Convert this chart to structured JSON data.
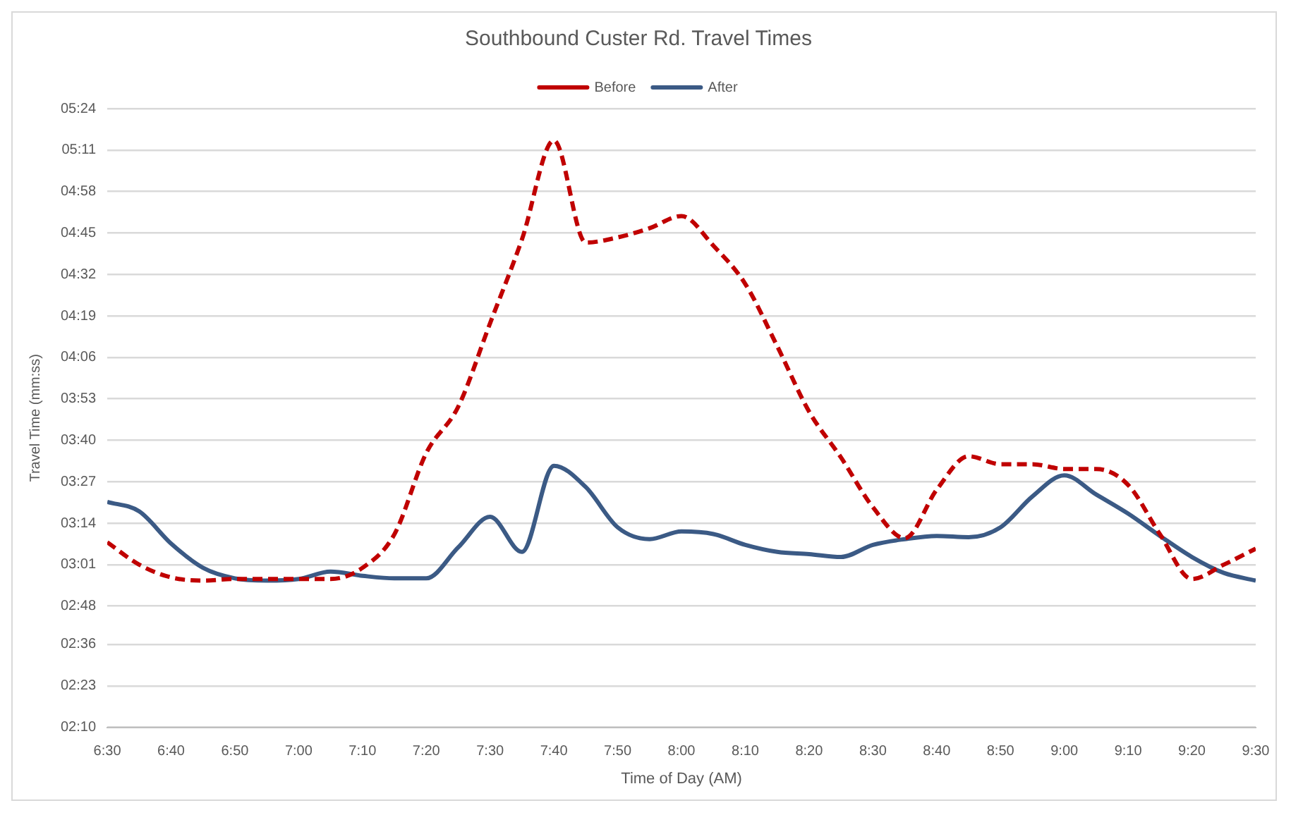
{
  "chart_data": {
    "type": "line",
    "title": "Southbound Custer Rd. Travel Times",
    "xlabel": "Time of Day (AM)",
    "ylabel": "Travel Time (mm:ss)",
    "x": [
      6.5,
      6.5833,
      6.6667,
      6.75,
      6.8333,
      6.9167,
      7,
      7.0833,
      7.1667,
      7.25,
      7.3333,
      7.4167,
      7.5,
      7.5833,
      7.6667,
      7.75,
      7.8333,
      7.9167,
      8,
      8.0833,
      8.1667,
      8.25,
      8.3333,
      8.4167,
      8.5,
      8.5833,
      8.6667,
      8.75,
      8.8333,
      8.9167,
      9,
      9.0833,
      9.1667,
      9.25,
      9.3333,
      9.4167,
      9.5
    ],
    "series": [
      {
        "name": "Before",
        "color": "#c00000",
        "line_style": "dashed",
        "values": [
          188,
          181,
          177,
          176,
          176.5,
          176.5,
          176.5,
          176.5,
          180,
          190.5,
          216,
          230.5,
          256.7,
          283,
          314,
          282,
          283.6,
          286.5,
          290.3,
          281,
          269,
          249.5,
          229,
          214.6,
          199,
          189.3,
          204.5,
          215,
          212.5,
          212.5,
          211,
          211,
          206,
          190.5,
          176.5,
          181,
          186
        ]
      },
      {
        "name": "After",
        "color": "#3b5a85",
        "line_style": "solid",
        "values": [
          200.7,
          197.7,
          187.6,
          180,
          176.7,
          176,
          176.5,
          178.8,
          177.5,
          176.7,
          176.7,
          186.4,
          196,
          185,
          212,
          205.3,
          192.7,
          189,
          191.4,
          190.6,
          187.2,
          185,
          184.3,
          183.4,
          187.2,
          189,
          190,
          189.6,
          192.7,
          202.4,
          209,
          203,
          197,
          190,
          183.4,
          178.4,
          176
        ]
      }
    ],
    "xlim": [
      6.5,
      9.5
    ],
    "xticks": [
      {
        "value": 6.5,
        "label": "6:30"
      },
      {
        "value": 6.6667,
        "label": "6:40"
      },
      {
        "value": 6.8333,
        "label": "6:50"
      },
      {
        "value": 7,
        "label": "7:00"
      },
      {
        "value": 7.1667,
        "label": "7:10"
      },
      {
        "value": 7.3333,
        "label": "7:20"
      },
      {
        "value": 7.5,
        "label": "7:30"
      },
      {
        "value": 7.6667,
        "label": "7:40"
      },
      {
        "value": 7.8333,
        "label": "7:50"
      },
      {
        "value": 8,
        "label": "8:00"
      },
      {
        "value": 8.1667,
        "label": "8:10"
      },
      {
        "value": 8.3333,
        "label": "8:20"
      },
      {
        "value": 8.5,
        "label": "8:30"
      },
      {
        "value": 8.6667,
        "label": "8:40"
      },
      {
        "value": 8.8333,
        "label": "8:50"
      },
      {
        "value": 9,
        "label": "9:00"
      },
      {
        "value": 9.1667,
        "label": "9:10"
      },
      {
        "value": 9.3333,
        "label": "9:20"
      },
      {
        "value": 9.5,
        "label": "9:30"
      }
    ],
    "ylim": [
      130,
      324
    ],
    "yticks": [
      {
        "value": 130,
        "label": "02:10"
      },
      {
        "value": 143,
        "label": "02:23"
      },
      {
        "value": 156,
        "label": "02:36"
      },
      {
        "value": 168,
        "label": "02:48"
      },
      {
        "value": 181,
        "label": "03:01"
      },
      {
        "value": 194,
        "label": "03:14"
      },
      {
        "value": 207,
        "label": "03:27"
      },
      {
        "value": 220,
        "label": "03:40"
      },
      {
        "value": 233,
        "label": "03:53"
      },
      {
        "value": 246,
        "label": "04:06"
      },
      {
        "value": 259,
        "label": "04:19"
      },
      {
        "value": 272,
        "label": "04:32"
      },
      {
        "value": 285,
        "label": "04:45"
      },
      {
        "value": 298,
        "label": "04:58"
      },
      {
        "value": 311,
        "label": "05:11"
      },
      {
        "value": 324,
        "label": "05:24"
      }
    ],
    "grid": "y",
    "legend": "top",
    "marker": "none"
  }
}
